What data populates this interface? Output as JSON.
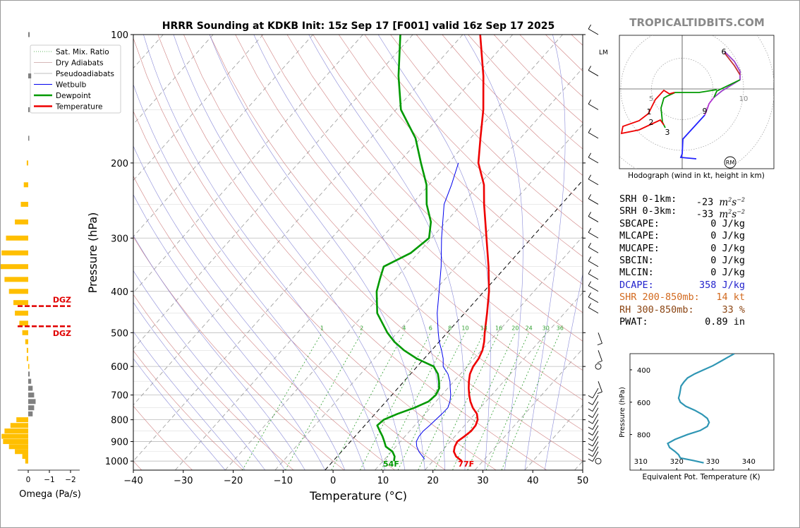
{
  "title": "HRRR Sounding at KDKB Init: 15z Sep 17 [F001] valid 16z Sep 17 2025",
  "watermark": "TROPICALTIDBITS.COM",
  "chart_data": {
    "type": "skew-t",
    "xlabel": "Temperature (°C)",
    "ylabel": "Pressure (hPa)",
    "xlim": [
      -40,
      50
    ],
    "ylim": [
      1050,
      100
    ],
    "x_ticks": [
      "−40",
      "−30",
      "−20",
      "−10",
      "0",
      "10",
      "20",
      "30",
      "40",
      "50"
    ],
    "y_ticks": [
      {
        "p": 100,
        "label": "100"
      },
      {
        "p": 200,
        "label": "200"
      },
      {
        "p": 300,
        "label": "300"
      },
      {
        "p": 400,
        "label": "400"
      },
      {
        "p": 500,
        "label": "500"
      },
      {
        "p": 600,
        "label": "600"
      },
      {
        "p": 700,
        "label": "700"
      },
      {
        "p": 800,
        "label": "800"
      },
      {
        "p": 900,
        "label": "900"
      },
      {
        "p": 1000,
        "label": "1000"
      }
    ],
    "legend": {
      "position": "top-left",
      "entries": [
        {
          "label": "Sat. Mix. Ratio",
          "color": "#2e9e2e",
          "style": "dotted"
        },
        {
          "label": "Dry Adiabats",
          "color": "#c9a0a0",
          "style": "solid"
        },
        {
          "label": "Pseudoadiabats",
          "color": "#aaaaaa",
          "style": "solid"
        },
        {
          "label": "Wetbulb",
          "color": "#0000ee",
          "style": "solid"
        },
        {
          "label": "Dewpoint",
          "color": "#009900",
          "style": "solid"
        },
        {
          "label": "Temperature",
          "color": "#ee0000",
          "style": "solid"
        }
      ]
    },
    "mixing_ratio_labels": [
      "1",
      "2",
      "4",
      "6",
      "8",
      "10",
      "13",
      "16",
      "20",
      "24",
      "30",
      "36"
    ],
    "temperature": [
      [
        1000,
        25.8
      ],
      [
        975,
        23.8
      ],
      [
        950,
        22.5
      ],
      [
        925,
        21.8
      ],
      [
        900,
        21.4
      ],
      [
        875,
        21.9
      ],
      [
        850,
        22.3
      ],
      [
        825,
        22.2
      ],
      [
        800,
        21.6
      ],
      [
        775,
        20.4
      ],
      [
        750,
        18.5
      ],
      [
        725,
        16.9
      ],
      [
        700,
        15.5
      ],
      [
        675,
        14.2
      ],
      [
        650,
        13.0
      ],
      [
        625,
        11.9
      ],
      [
        600,
        11.2
      ],
      [
        575,
        10.9
      ],
      [
        550,
        10.2
      ],
      [
        525,
        9.0
      ],
      [
        500,
        7.5
      ],
      [
        450,
        4.5
      ],
      [
        400,
        1.0
      ],
      [
        350,
        -3.5
      ],
      [
        300,
        -9.0
      ],
      [
        250,
        -15.5
      ],
      [
        225,
        -19.0
      ],
      [
        200,
        -24.0
      ],
      [
        175,
        -28.0
      ],
      [
        150,
        -32.5
      ],
      [
        125,
        -38.5
      ],
      [
        100,
        -46.5
      ]
    ],
    "dewpoint": [
      [
        1000,
        12.2
      ],
      [
        975,
        11.5
      ],
      [
        950,
        10.2
      ],
      [
        925,
        8.0
      ],
      [
        900,
        6.8
      ],
      [
        875,
        5.5
      ],
      [
        850,
        4.0
      ],
      [
        825,
        2.5
      ],
      [
        800,
        2.8
      ],
      [
        775,
        4.5
      ],
      [
        750,
        6.8
      ],
      [
        725,
        8.5
      ],
      [
        700,
        8.8
      ],
      [
        675,
        8.3
      ],
      [
        650,
        7.0
      ],
      [
        625,
        5.5
      ],
      [
        600,
        3.3
      ],
      [
        575,
        -1.5
      ],
      [
        550,
        -5.5
      ],
      [
        525,
        -9.0
      ],
      [
        500,
        -12.0
      ],
      [
        450,
        -17.5
      ],
      [
        400,
        -21.5
      ],
      [
        375,
        -23.0
      ],
      [
        350,
        -24.5
      ],
      [
        325,
        -21.5
      ],
      [
        300,
        -20.5
      ],
      [
        275,
        -23.0
      ],
      [
        250,
        -27.0
      ],
      [
        225,
        -30.5
      ],
      [
        200,
        -35.5
      ],
      [
        175,
        -41.0
      ],
      [
        150,
        -49.0
      ],
      [
        125,
        -55.5
      ],
      [
        100,
        -62.5
      ]
    ],
    "wetbulb": [
      [
        990,
        18.0
      ],
      [
        950,
        15.5
      ],
      [
        925,
        14.2
      ],
      [
        900,
        13.2
      ],
      [
        875,
        12.8
      ],
      [
        850,
        12.7
      ],
      [
        825,
        13.0
      ],
      [
        800,
        13.2
      ],
      [
        775,
        13.4
      ],
      [
        750,
        13.5
      ],
      [
        725,
        12.8
      ],
      [
        700,
        11.8
      ],
      [
        675,
        10.5
      ],
      [
        650,
        9.2
      ],
      [
        625,
        7.5
      ],
      [
        600,
        5.2
      ],
      [
        575,
        3.8
      ],
      [
        550,
        2.0
      ],
      [
        525,
        0.0
      ],
      [
        500,
        -1.8
      ],
      [
        450,
        -5.5
      ],
      [
        400,
        -9.0
      ],
      [
        350,
        -13.0
      ],
      [
        300,
        -18.0
      ],
      [
        250,
        -23.5
      ],
      [
        225,
        -25.5
      ],
      [
        200,
        -28.0
      ]
    ],
    "surface_labels": {
      "dewpoint": "54F",
      "temperature": "77F"
    },
    "lcl_label": "LM"
  },
  "omega": {
    "xlabel": "Omega (Pa/s)",
    "x_ticks": [
      "0",
      "−1",
      "−2"
    ],
    "dgz_label": "DGZ",
    "dgz_levels": [
      433,
      483
    ],
    "bars": [
      [
        1000,
        0.2
      ],
      [
        975,
        0.4
      ],
      [
        950,
        0.9
      ],
      [
        925,
        1.3
      ],
      [
        900,
        1.7
      ],
      [
        875,
        1.8
      ],
      [
        850,
        1.6
      ],
      [
        825,
        1.2
      ],
      [
        800,
        0.8
      ],
      [
        775,
        -0.3
      ],
      [
        750,
        -0.4
      ],
      [
        725,
        -0.5
      ],
      [
        700,
        -0.4
      ],
      [
        675,
        -0.3
      ],
      [
        650,
        -0.2
      ],
      [
        625,
        -0.1
      ],
      [
        600,
        0.0
      ],
      [
        575,
        0.1
      ],
      [
        550,
        0.1
      ],
      [
        525,
        0.2
      ],
      [
        500,
        0.4
      ],
      [
        475,
        0.6
      ],
      [
        450,
        0.9
      ],
      [
        425,
        1.0
      ],
      [
        400,
        1.3
      ],
      [
        375,
        1.6
      ],
      [
        350,
        1.9
      ],
      [
        325,
        1.8
      ],
      [
        300,
        1.5
      ],
      [
        275,
        0.9
      ],
      [
        250,
        0.5
      ],
      [
        225,
        0.3
      ],
      [
        200,
        0.1
      ],
      [
        175,
        -0.05
      ],
      [
        150,
        -0.1
      ],
      [
        125,
        -0.2
      ],
      [
        100,
        -0.1
      ]
    ]
  },
  "hodograph": {
    "caption": "Hodograph (wind in kt, height in km)",
    "ring_labels": [
      "5",
      "10"
    ],
    "storm_motion_label": "RM",
    "height_labels": [
      "1",
      "2",
      "3",
      "6",
      "9"
    ]
  },
  "stats": [
    {
      "label": "SRH 0-1km:",
      "value": "-23",
      "unit": "m2s-2",
      "color": "#000000"
    },
    {
      "label": "SRH 0-3km:",
      "value": "-33",
      "unit": "m2s-2",
      "color": "#000000"
    },
    {
      "label": "SBCAPE:",
      "value": "0 J/kg",
      "color": "#000000"
    },
    {
      "label": "MLCAPE:",
      "value": "0 J/kg",
      "color": "#000000"
    },
    {
      "label": "MUCAPE:",
      "value": "0 J/kg",
      "color": "#000000"
    },
    {
      "label": "SBCIN:",
      "value": "0 J/kg",
      "color": "#000000"
    },
    {
      "label": "MLCIN:",
      "value": "0 J/kg",
      "color": "#000000"
    },
    {
      "label": "DCAPE:",
      "value": "358 J/kg",
      "color": "#2222cc"
    },
    {
      "label": "SHR 200-850mb:",
      "value": "14 kt",
      "color": "#d2691e"
    },
    {
      "label": "RH 300-850mb:",
      "value": "33 %",
      "color": "#8b4513"
    },
    {
      "label": "PWAT:",
      "value": "0.89 in",
      "color": "#000000"
    }
  ],
  "theta_e": {
    "xlabel": "Equivalent Pot. Temperature (K)",
    "ylabel": "Pressure (hPa)",
    "x_ticks": [
      "310",
      "320",
      "330",
      "340"
    ],
    "y_ticks": [
      "400",
      "600",
      "800"
    ],
    "xlim": [
      307,
      347
    ],
    "ylim": [
      1020,
      300
    ],
    "profile": [
      [
        975,
        327.5
      ],
      [
        960,
        324.5
      ],
      [
        945,
        321.0
      ],
      [
        925,
        320.5
      ],
      [
        905,
        319.5
      ],
      [
        880,
        318.0
      ],
      [
        855,
        317.5
      ],
      [
        830,
        319.5
      ],
      [
        800,
        323.0
      ],
      [
        775,
        326.5
      ],
      [
        750,
        328.5
      ],
      [
        725,
        329.0
      ],
      [
        700,
        328.5
      ],
      [
        675,
        327.0
      ],
      [
        650,
        325.0
      ],
      [
        625,
        322.5
      ],
      [
        600,
        321.0
      ],
      [
        575,
        320.5
      ],
      [
        550,
        320.8
      ],
      [
        500,
        321.2
      ],
      [
        475,
        322.0
      ],
      [
        450,
        323.0
      ],
      [
        425,
        325.0
      ],
      [
        400,
        327.5
      ],
      [
        375,
        330.0
      ],
      [
        350,
        332.0
      ],
      [
        325,
        334.0
      ],
      [
        300,
        336.0
      ]
    ]
  },
  "colors": {
    "temperature": "#ee0000",
    "dewpoint": "#009900",
    "wetbulb": "#0000ee",
    "isotherm": "#888888",
    "dry_adiabat": "#d08080",
    "moist_adiabat": "#8a8ad8",
    "mixing_ratio": "#2e9e2e",
    "omega_bar": "#ffbf00",
    "omega_neg": "#808080",
    "theta_e": "#2f96b4"
  }
}
